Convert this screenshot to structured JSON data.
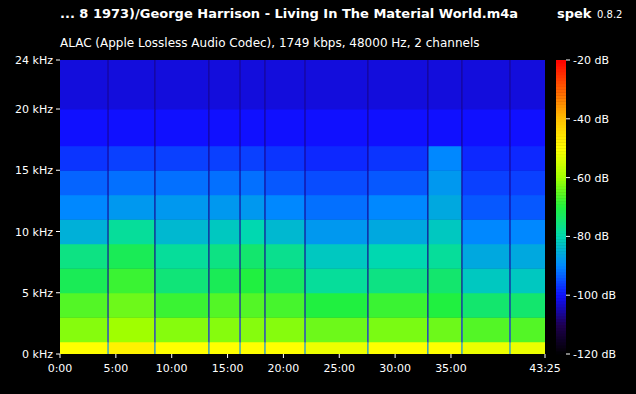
{
  "chart_data": {
    "type": "heatmap",
    "title": "... 8 1973)/George Harrison - Living In The Material World.m4a",
    "app": "spek",
    "version": "0.8.2",
    "subtitle": "ALAC (Apple Lossless Audio Codec), 1749 kbps, 48000 Hz, 2 channels",
    "x_bins": [
      0,
      255,
      261,
      507,
      513,
      797,
      803,
      964,
      970,
      1098,
      1104,
      1313,
      1319,
      1651,
      1657,
      1973,
      1979,
      2156,
      2162,
      2414,
      2420,
      2605
    ],
    "y_bins": [
      0,
      1,
      3,
      5,
      7,
      9,
      11,
      13,
      15,
      17,
      20,
      24
    ],
    "cells": [
      [
        -50,
        -90,
        -48,
        -90,
        -50,
        -90,
        -50,
        -90,
        -50,
        -90,
        -50,
        -90,
        -52,
        -90,
        -50,
        -90,
        -50,
        -90,
        -52,
        -90,
        -52
      ],
      [
        -62,
        -100,
        -60,
        -100,
        -62,
        -100,
        -62,
        -100,
        -62,
        -100,
        -62,
        -100,
        -64,
        -100,
        -63,
        -100,
        -64,
        -100,
        -66,
        -100,
        -66
      ],
      [
        -66,
        -104,
        -64,
        -104,
        -68,
        -104,
        -66,
        -104,
        -66,
        -104,
        -67,
        -104,
        -70,
        -104,
        -68,
        -104,
        -70,
        -104,
        -74,
        -104,
        -74
      ],
      [
        -72,
        -106,
        -68,
        -106,
        -75,
        -106,
        -72,
        -106,
        -70,
        -106,
        -73,
        -106,
        -78,
        -106,
        -76,
        -106,
        -74,
        -106,
        -82,
        -106,
        -82
      ],
      [
        -76,
        -106,
        -72,
        -106,
        -78,
        -106,
        -76,
        -106,
        -74,
        -106,
        -77,
        -106,
        -82,
        -106,
        -80,
        -106,
        -78,
        -106,
        -86,
        -106,
        -86
      ],
      [
        -85,
        -106,
        -78,
        -106,
        -84,
        -106,
        -82,
        -106,
        -80,
        -106,
        -84,
        -106,
        -88,
        -106,
        -86,
        -106,
        -82,
        -106,
        -90,
        -106,
        -90
      ],
      [
        -90,
        -106,
        -88,
        -106,
        -88,
        -106,
        -88,
        -106,
        -88,
        -106,
        -90,
        -106,
        -92,
        -106,
        -90,
        -106,
        -86,
        -106,
        -94,
        -106,
        -94
      ],
      [
        -93,
        -106,
        -92,
        -106,
        -92,
        -106,
        -92,
        -106,
        -92,
        -106,
        -94,
        -106,
        -95,
        -106,
        -94,
        -106,
        -88,
        -106,
        -96,
        -106,
        -96
      ],
      [
        -97,
        -106,
        -96,
        -106,
        -96,
        -106,
        -96,
        -106,
        -96,
        -106,
        -97,
        -106,
        -98,
        -106,
        -97,
        -106,
        -90,
        -106,
        -98,
        -106,
        -98
      ],
      [
        -100,
        -106,
        -100,
        -106,
        -100,
        -106,
        -100,
        -106,
        -100,
        -106,
        -100,
        -106,
        -100,
        -106,
        -100,
        -106,
        -100,
        -106,
        -100,
        -106,
        -100
      ],
      [
        -102,
        -106,
        -102,
        -106,
        -102,
        -106,
        -102,
        -106,
        -102,
        -106,
        -102,
        -106,
        -102,
        -106,
        -102,
        -106,
        -102,
        -106,
        -102,
        -106,
        -102
      ]
    ],
    "xlim": [
      0,
      2605
    ],
    "xticks": [
      {
        "value": 0,
        "label": "0:00"
      },
      {
        "value": 300,
        "label": "5:00"
      },
      {
        "value": 600,
        "label": "10:00"
      },
      {
        "value": 900,
        "label": "15:00"
      },
      {
        "value": 1200,
        "label": "20:00"
      },
      {
        "value": 1500,
        "label": "25:00"
      },
      {
        "value": 1800,
        "label": "30:00"
      },
      {
        "value": 2100,
        "label": "35:00"
      },
      {
        "value": 2605,
        "label": "43:25"
      }
    ],
    "ylim": [
      0,
      24
    ],
    "yticks": [
      {
        "value": 0,
        "label": "0 kHz"
      },
      {
        "value": 5,
        "label": "5 kHz"
      },
      {
        "value": 10,
        "label": "10 kHz"
      },
      {
        "value": 15,
        "label": "15 kHz"
      },
      {
        "value": 20,
        "label": "20 kHz"
      },
      {
        "value": 24,
        "label": "24 kHz"
      }
    ],
    "colorbar": {
      "range": [
        -120,
        -20
      ],
      "ticks": [
        {
          "value": -20,
          "label": "-20 dB"
        },
        {
          "value": -40,
          "label": "-40 dB"
        },
        {
          "value": -60,
          "label": "-60 dB"
        },
        {
          "value": -80,
          "label": "-80 dB"
        },
        {
          "value": -100,
          "label": "-100 dB"
        },
        {
          "value": -120,
          "label": "-120 dB"
        }
      ]
    }
  }
}
